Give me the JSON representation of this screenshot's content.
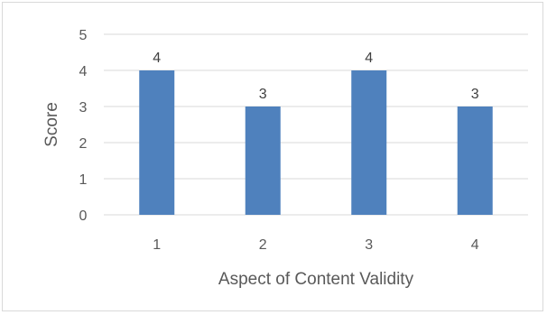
{
  "chart_data": {
    "type": "bar",
    "categories": [
      "1",
      "2",
      "3",
      "4"
    ],
    "values": [
      4,
      3,
      4,
      3
    ],
    "data_labels": [
      "4",
      "3",
      "4",
      "3"
    ],
    "title": "",
    "xlabel": "Aspect of Content Validity",
    "ylabel": "Score",
    "ylim": [
      0,
      5
    ],
    "yticks": [
      "0",
      "1",
      "2",
      "3",
      "4",
      "5"
    ],
    "grid": true,
    "bar_color": "#4f81bd",
    "grid_color": "#d9d9d9"
  }
}
